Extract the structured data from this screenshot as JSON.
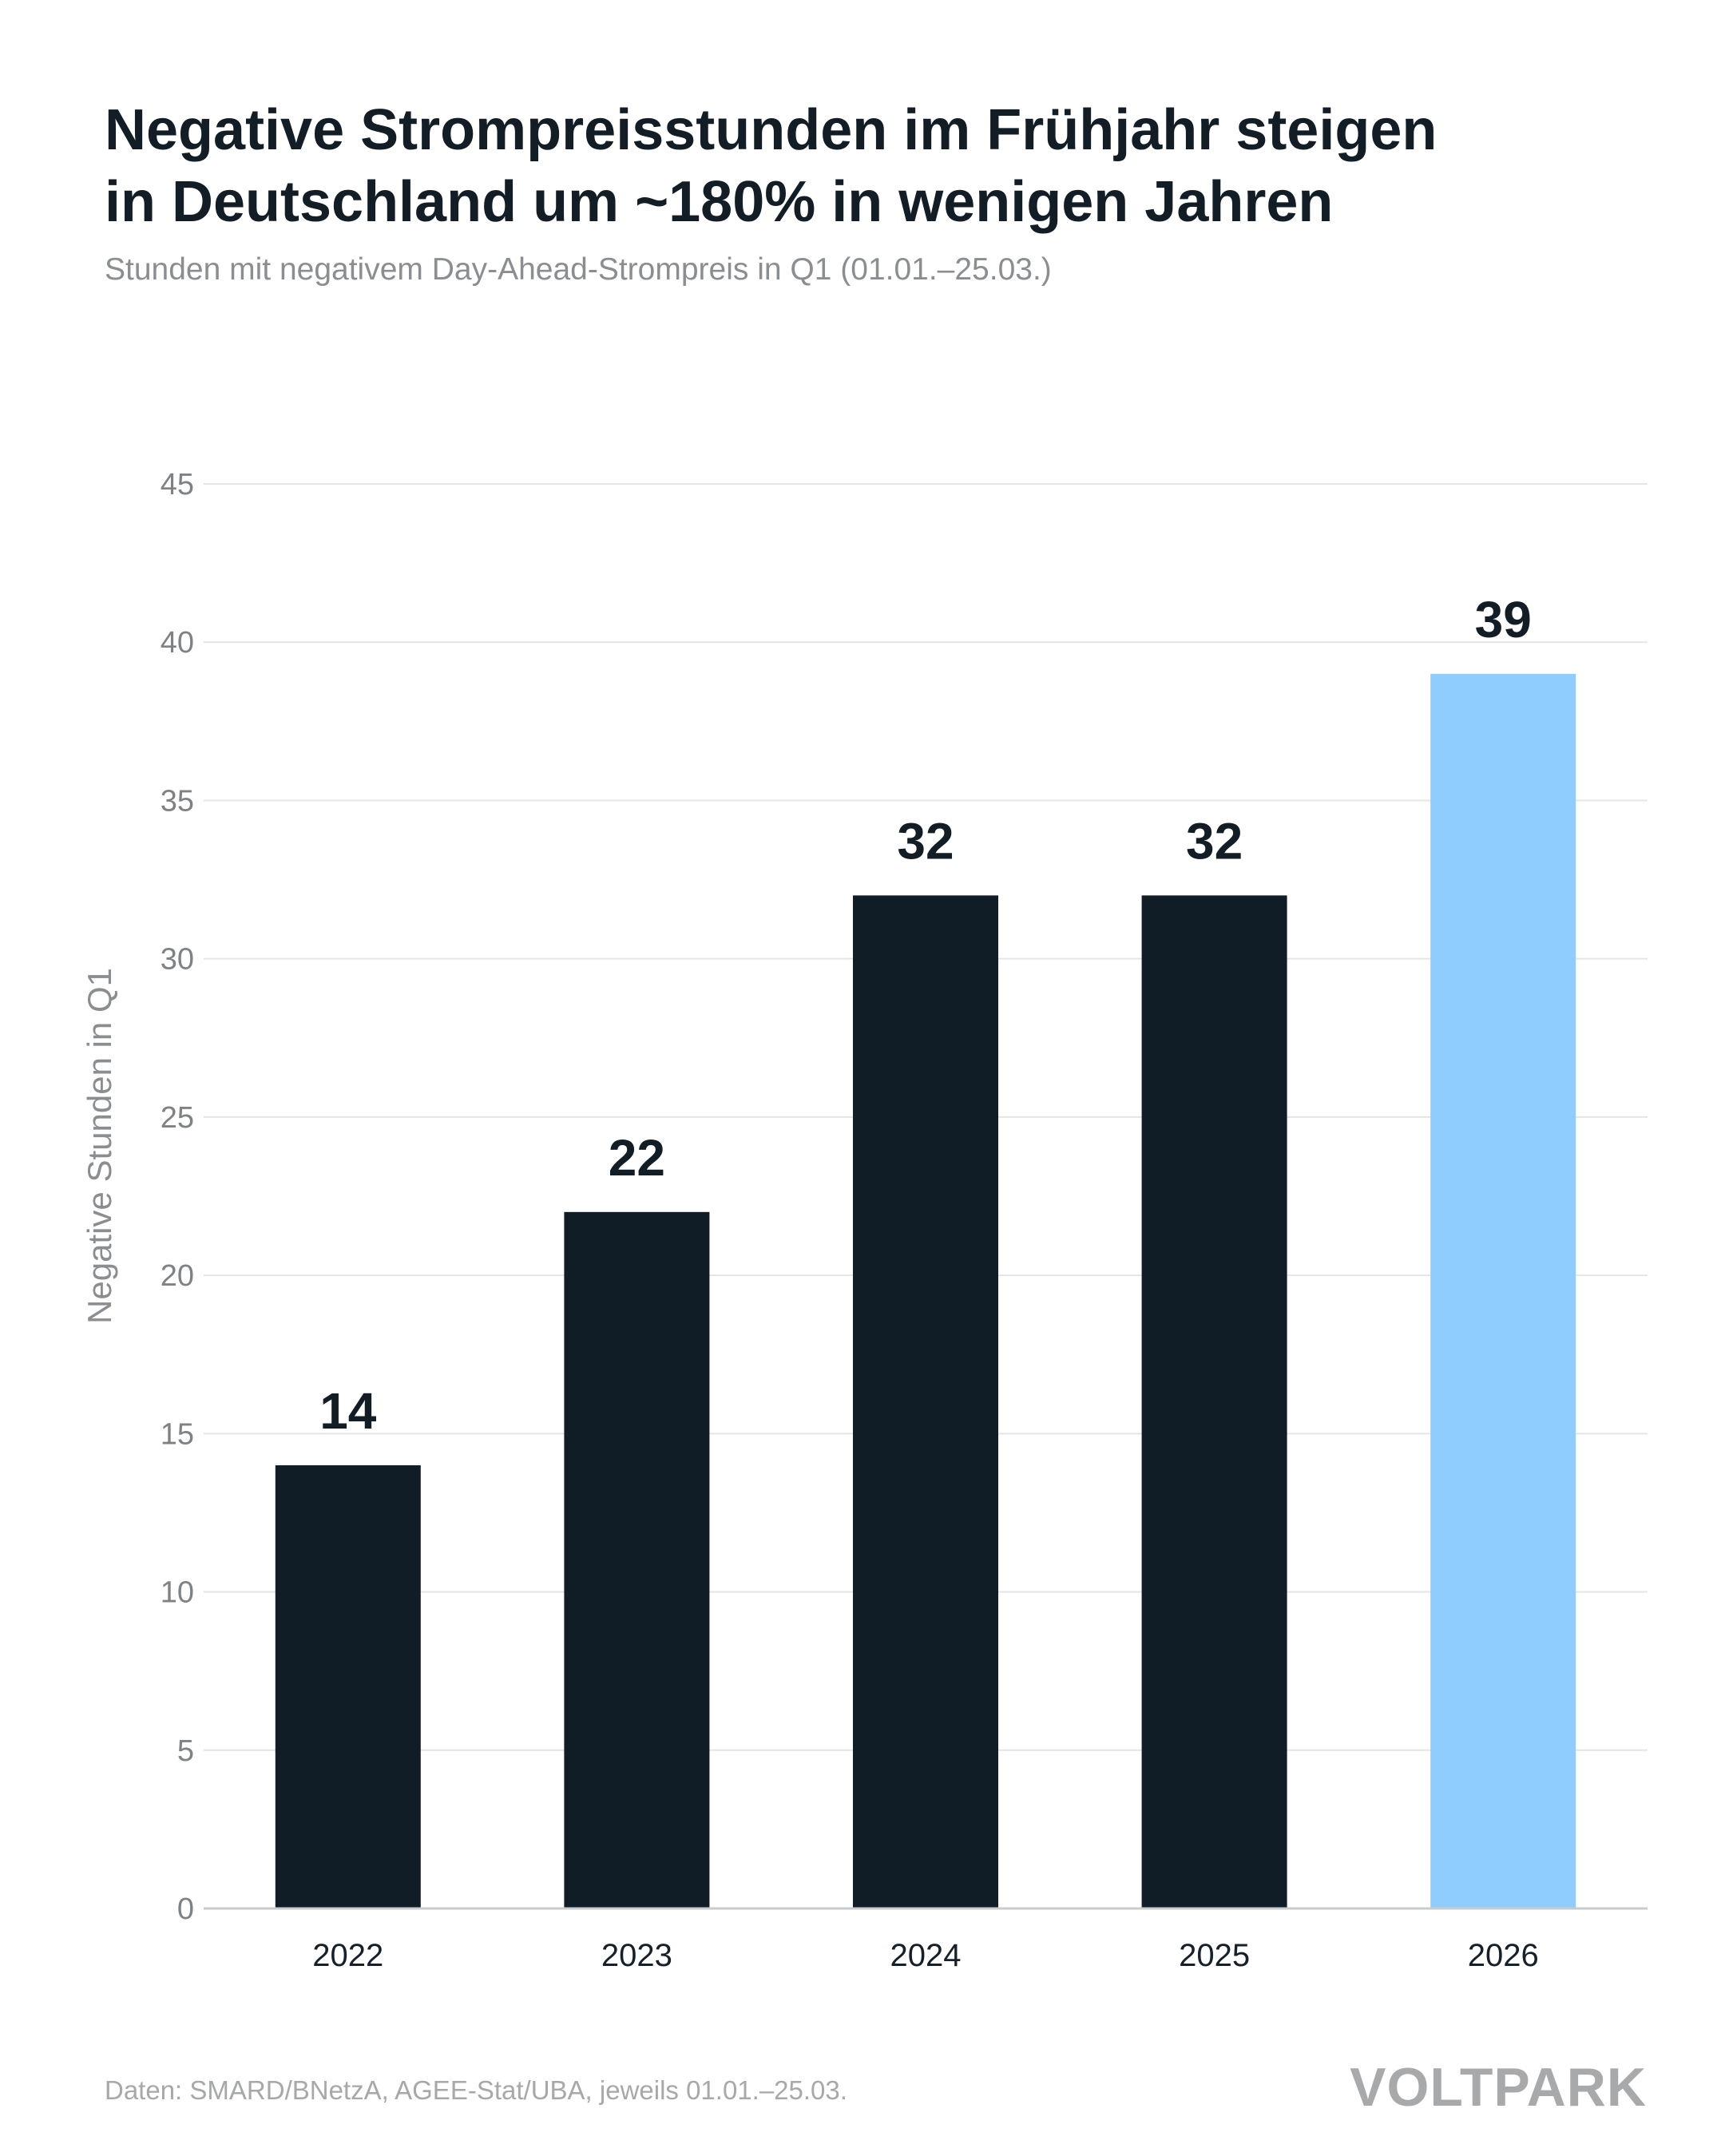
{
  "header": {
    "title_line1": "Negative Strompreisstunden im Frühjahr steigen",
    "title_line2": "in Deutschland um ~180% in wenigen Jahren",
    "subtitle": "Stunden mit negativem Day-Ahead-Strompreis in Q1 (01.01.–25.03.)"
  },
  "footer": {
    "source": "Daten: SMARD/BNetzA, AGEE-Stat/UBA, jeweils 01.01.–25.03.",
    "logo": "VOLTPARK"
  },
  "colors": {
    "bar_default": "#111d26",
    "bar_highlight": "#8ecdfd",
    "grid": "#e4e5e6",
    "axis": "#c9cbcd"
  },
  "chart_data": {
    "type": "bar",
    "title": "Negative Strompreisstunden im Frühjahr steigen in Deutschland um ~180% in wenigen Jahren",
    "xlabel": "",
    "ylabel": "Negative Stunden in Q1",
    "categories": [
      "2022",
      "2023",
      "2024",
      "2025",
      "2026"
    ],
    "values": [
      14,
      22,
      32,
      32,
      39
    ],
    "highlight": [
      "2026"
    ],
    "ylim": [
      0,
      45
    ],
    "yticks": [
      0,
      5,
      10,
      15,
      20,
      25,
      30,
      35,
      40,
      45
    ],
    "grid": true,
    "data_labels": true
  }
}
